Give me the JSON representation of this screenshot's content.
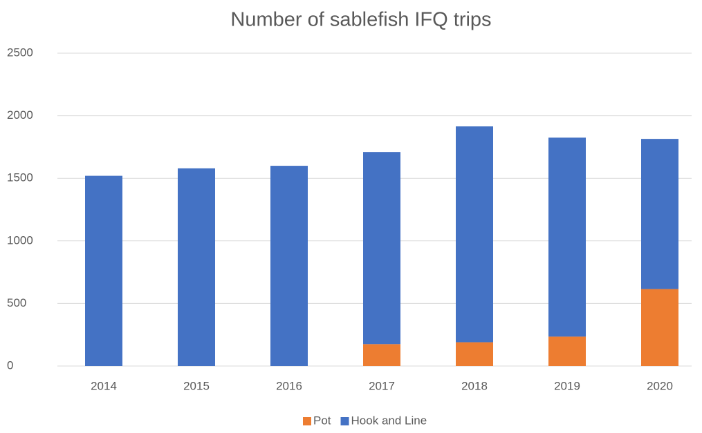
{
  "chart_data": {
    "type": "bar",
    "stacked": true,
    "title": "Number of sablefish IFQ trips",
    "categories": [
      "2014",
      "2015",
      "2016",
      "2017",
      "2018",
      "2019",
      "2020"
    ],
    "series": [
      {
        "name": "Pot",
        "color": "#ed7d31",
        "values": [
          0,
          0,
          0,
          175,
          190,
          235,
          615
        ]
      },
      {
        "name": "Hook and Line",
        "color": "#4472c4",
        "values": [
          1520,
          1580,
          1600,
          1535,
          1725,
          1590,
          1200
        ]
      }
    ],
    "ylim": [
      0,
      2500
    ],
    "yticks": [
      0,
      500,
      1000,
      1500,
      2000,
      2500
    ],
    "grid": true,
    "legend": "bottom"
  }
}
